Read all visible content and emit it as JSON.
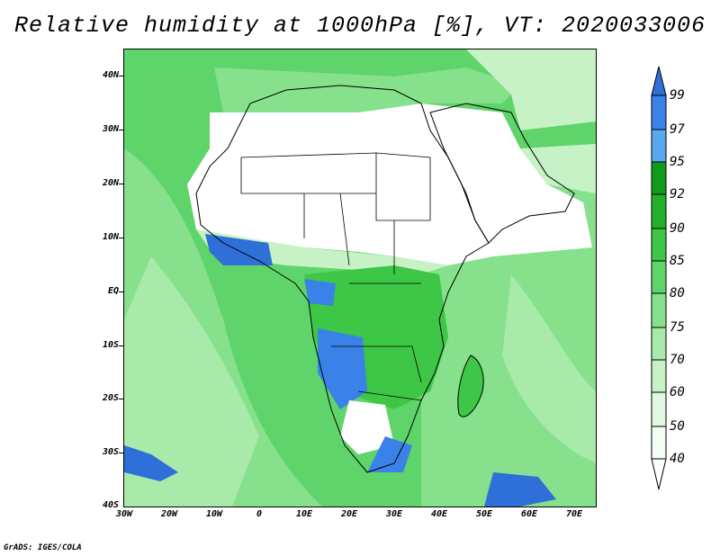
{
  "title": "Relative humidity at 1000hPa [%], VT: 2020033006",
  "credit": "GrADS: IGES/COLA",
  "map": {
    "lat_labels": [
      "40N",
      "30N",
      "20N",
      "10N",
      "EQ",
      "10S",
      "20S",
      "30S",
      "40S"
    ],
    "lon_labels": [
      "30W",
      "20W",
      "10W",
      "0",
      "10E",
      "20E",
      "30E",
      "40E",
      "50E",
      "60E",
      "70E"
    ]
  },
  "colorbar": {
    "levels": [
      "99",
      "97",
      "95",
      "92",
      "90",
      "85",
      "80",
      "75",
      "70",
      "60",
      "50",
      "40"
    ],
    "colors": {
      "above_99": "#2e6fd8",
      "97_99": "#3a82e8",
      "95_97": "#5aa8f0",
      "92_95": "#129a1e",
      "90_92": "#22b02c",
      "85_90": "#3ec646",
      "80_85": "#5fd46a",
      "75_80": "#86e08c",
      "70_75": "#a8eaaa",
      "60_70": "#c6f2c6",
      "50_60": "#e0f8e0",
      "40_50": "#f4fdf4"
    }
  }
}
